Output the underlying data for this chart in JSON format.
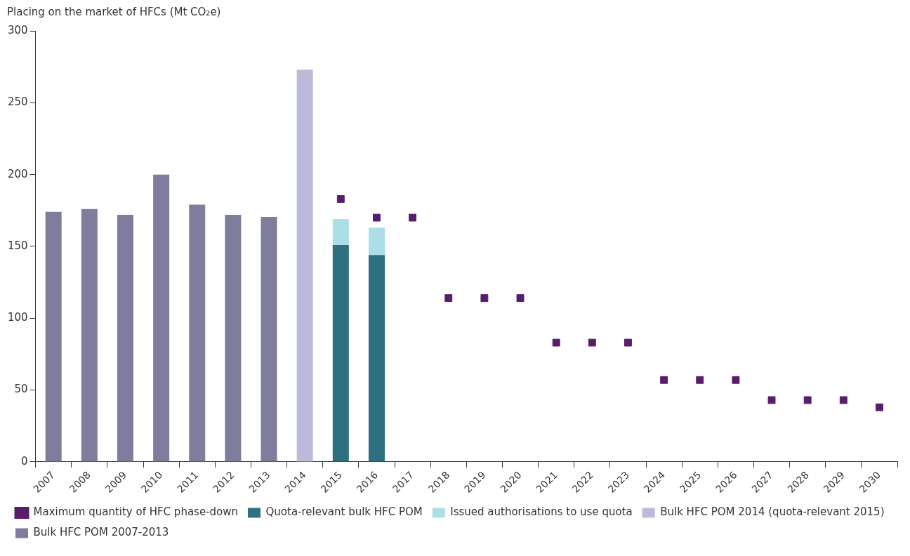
{
  "chart_data": {
    "type": "bar",
    "ylabel": "Placing on the market of HFCs (Mt CO₂e)",
    "categories": [
      "2007",
      "2008",
      "2009",
      "2010",
      "2011",
      "2012",
      "2013",
      "2014",
      "2015",
      "2016",
      "2017",
      "2018",
      "2019",
      "2020",
      "2021",
      "2022",
      "2023",
      "2024",
      "2025",
      "2026",
      "2027",
      "2028",
      "2029",
      "2030"
    ],
    "stacked": true,
    "ylim": [
      0,
      300
    ],
    "yticks": [
      0,
      50,
      100,
      150,
      200,
      250,
      300
    ],
    "grid": false,
    "legend": "bottom",
    "series": [
      {
        "name": "Quota-relevant bulk HFC POM",
        "color": "#2e6f80",
        "values": [
          null,
          null,
          null,
          null,
          null,
          null,
          null,
          null,
          151,
          144,
          null,
          null,
          null,
          null,
          null,
          null,
          null,
          null,
          null,
          null,
          null,
          null,
          null,
          null
        ]
      },
      {
        "name": "Issued authorisations to use quota",
        "color": "#abdee7",
        "values": [
          null,
          null,
          null,
          null,
          null,
          null,
          null,
          null,
          18,
          19,
          null,
          null,
          null,
          null,
          null,
          null,
          null,
          null,
          null,
          null,
          null,
          null,
          null,
          null
        ]
      },
      {
        "name": "Bulk HFC POM 2014 (quota-relevant 2015)",
        "color": "#bbbadb",
        "values": [
          null,
          null,
          null,
          null,
          null,
          null,
          null,
          273,
          null,
          null,
          null,
          null,
          null,
          null,
          null,
          null,
          null,
          null,
          null,
          null,
          null,
          null,
          null,
          null
        ]
      },
      {
        "name": "Bulk HFC POM 2007-2013",
        "color": "#7e7d9d",
        "values": [
          174,
          176,
          172,
          200,
          179,
          172,
          170.5,
          null,
          null,
          null,
          null,
          null,
          null,
          null,
          null,
          null,
          null,
          null,
          null,
          null,
          null,
          null,
          null,
          null
        ]
      },
      {
        "name": "Maximum quantity of HFC phase-down",
        "type": "scatter",
        "marker": "square",
        "color": "#581d6b",
        "values": [
          null,
          null,
          null,
          null,
          null,
          null,
          null,
          null,
          183,
          170,
          170,
          114,
          114,
          114,
          83,
          83,
          83,
          57,
          57,
          57,
          43,
          43,
          43,
          38
        ]
      }
    ]
  }
}
